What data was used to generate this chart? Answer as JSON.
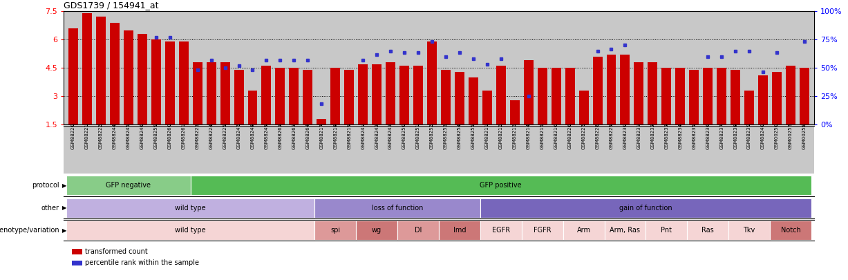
{
  "title": "GDS1739 / 154941_at",
  "samples": [
    "GSM88220",
    "GSM88221",
    "GSM88222",
    "GSM88244",
    "GSM88245",
    "GSM88246",
    "GSM88259",
    "GSM88260",
    "GSM88261",
    "GSM88223",
    "GSM88224",
    "GSM88225",
    "GSM88247",
    "GSM88248",
    "GSM88249",
    "GSM88262",
    "GSM88263",
    "GSM88264",
    "GSM88217",
    "GSM88218",
    "GSM88219",
    "GSM88241",
    "GSM88242",
    "GSM88243",
    "GSM88250",
    "GSM88251",
    "GSM88252",
    "GSM88253",
    "GSM88254",
    "GSM88255",
    "GSM88211",
    "GSM88212",
    "GSM88213",
    "GSM88214",
    "GSM88215",
    "GSM88216",
    "GSM88226",
    "GSM88227",
    "GSM88228",
    "GSM88229",
    "GSM88230",
    "GSM88231",
    "GSM88232",
    "GSM88233",
    "GSM88234",
    "GSM88235",
    "GSM88236",
    "GSM88237",
    "GSM88238",
    "GSM88239",
    "GSM88240",
    "GSM00250",
    "GSM00257",
    "GSM00258"
  ],
  "bar_values": [
    6.6,
    7.4,
    7.2,
    6.9,
    6.5,
    6.3,
    6.0,
    5.9,
    5.9,
    4.8,
    4.8,
    4.8,
    4.4,
    3.3,
    4.6,
    4.5,
    4.5,
    4.4,
    1.8,
    4.5,
    4.4,
    4.7,
    4.7,
    4.8,
    4.6,
    4.6,
    5.9,
    4.4,
    4.3,
    4.0,
    3.3,
    4.6,
    2.8,
    4.9,
    4.5,
    4.5,
    4.5,
    3.3,
    5.1,
    5.2,
    5.2,
    4.8,
    4.8,
    4.5,
    4.5,
    4.4,
    4.5,
    4.5,
    4.4,
    3.3,
    4.1,
    4.3,
    4.6,
    4.5
  ],
  "dot_values": [
    null,
    null,
    null,
    null,
    null,
    null,
    6.1,
    6.1,
    null,
    4.4,
    4.9,
    4.5,
    4.6,
    4.4,
    4.9,
    4.9,
    4.9,
    4.9,
    2.6,
    null,
    null,
    4.9,
    5.2,
    5.4,
    5.3,
    5.3,
    5.9,
    5.1,
    5.3,
    5.0,
    4.7,
    5.0,
    null,
    3.0,
    null,
    null,
    null,
    null,
    5.4,
    5.5,
    5.7,
    null,
    null,
    null,
    null,
    null,
    5.1,
    5.1,
    5.4,
    5.4,
    4.3,
    5.3,
    null,
    5.9
  ],
  "ylim": [
    1.5,
    7.5
  ],
  "yticks": [
    1.5,
    3.0,
    4.5,
    6.0,
    7.5
  ],
  "ytick_labels_left": [
    "1.5",
    "3",
    "4.5",
    "6",
    "7.5"
  ],
  "ytick_labels_right": [
    "0%",
    "25%",
    "50%",
    "75%",
    "100%"
  ],
  "bar_color": "#cc0000",
  "dot_color": "#3333cc",
  "plot_bg_color": "#c8c8c8",
  "xtick_bg_color": "#c8c8c8",
  "protocol_sections": [
    {
      "label": "GFP negative",
      "start": 0,
      "end": 9,
      "color": "#88cc88"
    },
    {
      "label": "GFP positive",
      "start": 9,
      "end": 54,
      "color": "#55bb55"
    }
  ],
  "other_sections": [
    {
      "label": "wild type",
      "start": 0,
      "end": 18,
      "color": "#c0b0e0"
    },
    {
      "label": "loss of function",
      "start": 18,
      "end": 30,
      "color": "#9988cc"
    },
    {
      "label": "gain of function",
      "start": 30,
      "end": 54,
      "color": "#7766bb"
    }
  ],
  "genotype_sections": [
    {
      "label": "wild type",
      "start": 0,
      "end": 18,
      "color": "#f5d5d5"
    },
    {
      "label": "spi",
      "start": 18,
      "end": 21,
      "color": "#dd9999"
    },
    {
      "label": "wg",
      "start": 21,
      "end": 24,
      "color": "#cc7777"
    },
    {
      "label": "Dl",
      "start": 24,
      "end": 27,
      "color": "#dd9999"
    },
    {
      "label": "Imd",
      "start": 27,
      "end": 30,
      "color": "#cc7777"
    },
    {
      "label": "EGFR",
      "start": 30,
      "end": 33,
      "color": "#f5d5d5"
    },
    {
      "label": "FGFR",
      "start": 33,
      "end": 36,
      "color": "#f5d5d5"
    },
    {
      "label": "Arm",
      "start": 36,
      "end": 39,
      "color": "#f5d5d5"
    },
    {
      "label": "Arm, Ras",
      "start": 39,
      "end": 42,
      "color": "#f5d5d5"
    },
    {
      "label": "Pnt",
      "start": 42,
      "end": 45,
      "color": "#f5d5d5"
    },
    {
      "label": "Ras",
      "start": 45,
      "end": 48,
      "color": "#f5d5d5"
    },
    {
      "label": "Tkv",
      "start": 48,
      "end": 51,
      "color": "#f5d5d5"
    },
    {
      "label": "Notch",
      "start": 51,
      "end": 54,
      "color": "#cc7777"
    }
  ],
  "row_labels": [
    "protocol",
    "other",
    "genotype/variation"
  ],
  "legend_items": [
    {
      "label": "transformed count",
      "color": "#cc0000"
    },
    {
      "label": "percentile rank within the sample",
      "color": "#3333cc"
    }
  ],
  "hlines": [
    3.0,
    4.5,
    6.0
  ],
  "fig_width": 12.27,
  "fig_height": 4.05,
  "dpi": 100
}
